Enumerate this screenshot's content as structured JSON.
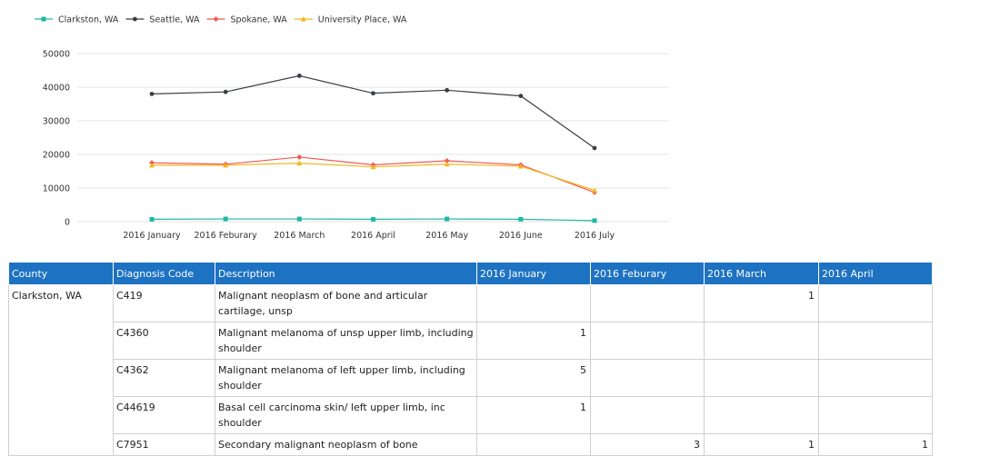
{
  "chart_data": {
    "type": "line",
    "categories": [
      "2016 January",
      "2016 Feburary",
      "2016 March",
      "2016 April",
      "2016 May",
      "2016 June",
      "2016 July"
    ],
    "ylim": [
      0,
      50000
    ],
    "yticks": [
      0,
      10000,
      20000,
      30000,
      40000,
      50000
    ],
    "grid": true,
    "legend_position": "top-left",
    "series": [
      {
        "name": "Clarkston, WA",
        "color": "#1fb8a6",
        "marker": "square",
        "values": [
          700,
          800,
          800,
          700,
          800,
          700,
          300
        ]
      },
      {
        "name": "Seattle, WA",
        "color": "#3a3f44",
        "marker": "circle",
        "values": [
          38000,
          38600,
          43400,
          38200,
          39100,
          37400,
          21900
        ]
      },
      {
        "name": "Spokane, WA",
        "color": "#f05a55",
        "marker": "diamond",
        "values": [
          17500,
          17100,
          19200,
          16900,
          18100,
          16900,
          8700
        ]
      },
      {
        "name": "University Place, WA",
        "color": "#f2b61f",
        "marker": "triangle",
        "values": [
          16800,
          16800,
          17400,
          16300,
          17100,
          16500,
          9300
        ]
      }
    ]
  },
  "table": {
    "headers": [
      "County",
      "Diagnosis Code",
      "Description",
      "2016 January",
      "2016 Feburary",
      "2016 March",
      "2016 April"
    ],
    "county": "Clarkston, WA",
    "rows": [
      {
        "code": "C419",
        "description": "Malignant neoplasm of bone and articular cartilage, unsp",
        "values": [
          "",
          "",
          "1",
          ""
        ]
      },
      {
        "code": "C4360",
        "description": "Malignant melanoma of unsp upper limb, including shoulder",
        "values": [
          "1",
          "",
          "",
          ""
        ]
      },
      {
        "code": "C4362",
        "description": "Malignant melanoma of left upper limb, including shoulder",
        "values": [
          "5",
          "",
          "",
          ""
        ]
      },
      {
        "code": "C44619",
        "description": "Basal cell carcinoma skin/ left upper limb, inc shoulder",
        "values": [
          "1",
          "",
          "",
          ""
        ]
      },
      {
        "code": "C7951",
        "description": "Secondary malignant neoplasm of bone",
        "values": [
          "",
          "3",
          "1",
          "1"
        ]
      }
    ]
  }
}
